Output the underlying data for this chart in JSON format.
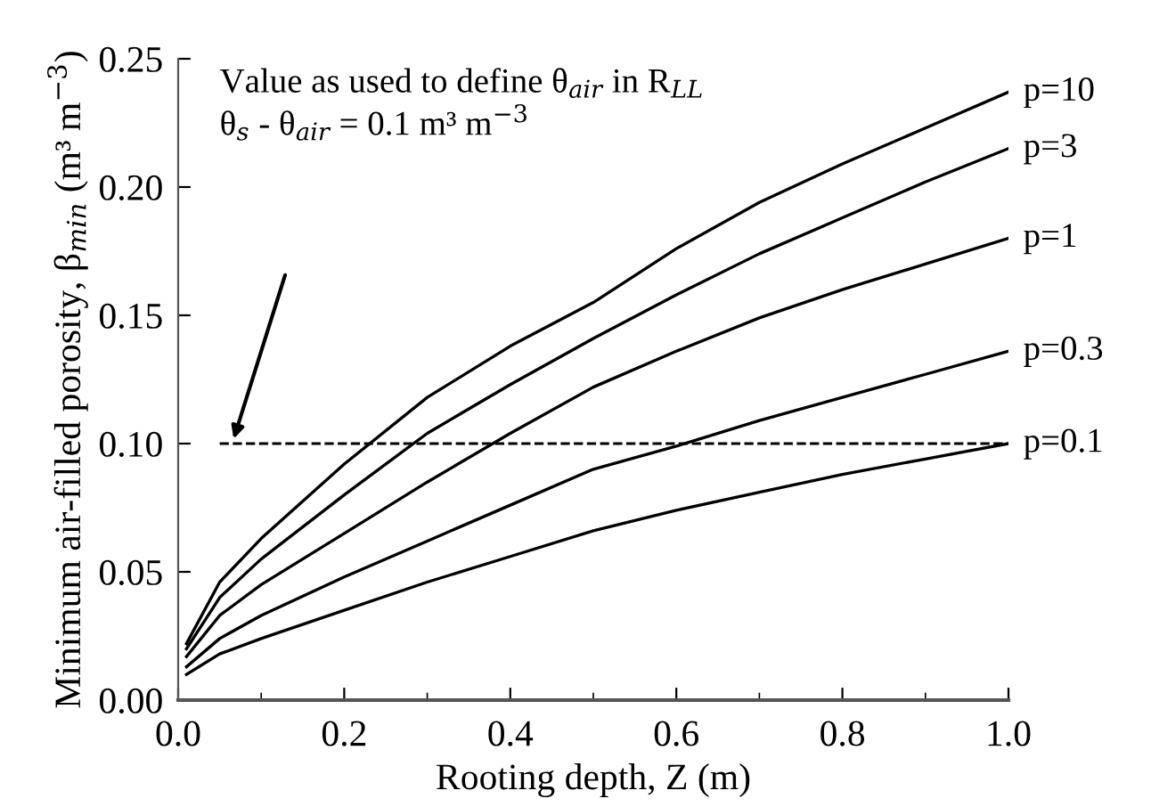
{
  "chart_data": {
    "type": "line",
    "xlabel": "Rooting depth, Z (m)",
    "ylabel": "Minimum air-filled porosity, β$_{min}$ (m³ m$^{−3}$)",
    "x": [
      0.01,
      0.05,
      0.1,
      0.2,
      0.3,
      0.4,
      0.5,
      0.6,
      0.7,
      0.8,
      0.9,
      1.0
    ],
    "series": [
      {
        "name": "p=10",
        "color": "#000000",
        "values": [
          0.022,
          0.046,
          0.063,
          0.092,
          0.118,
          0.138,
          0.155,
          0.176,
          0.194,
          0.209,
          0.223,
          0.237
        ]
      },
      {
        "name": "p=3",
        "color": "#000000",
        "values": [
          0.02,
          0.04,
          0.055,
          0.08,
          0.104,
          0.123,
          0.141,
          0.158,
          0.174,
          0.188,
          0.202,
          0.215
        ]
      },
      {
        "name": "p=1",
        "color": "#000000",
        "values": [
          0.017,
          0.033,
          0.045,
          0.065,
          0.085,
          0.104,
          0.122,
          0.136,
          0.149,
          0.16,
          0.17,
          0.18
        ]
      },
      {
        "name": "p=0.3",
        "color": "#000000",
        "values": [
          0.013,
          0.024,
          0.033,
          0.048,
          0.062,
          0.076,
          0.09,
          0.099,
          0.109,
          0.118,
          0.127,
          0.136
        ]
      },
      {
        "name": "p=0.1",
        "color": "#000000",
        "values": [
          0.01,
          0.018,
          0.024,
          0.035,
          0.046,
          0.056,
          0.066,
          0.074,
          0.081,
          0.088,
          0.094,
          0.1
        ]
      }
    ],
    "xlim": [
      0,
      1.0
    ],
    "xticks": [
      {
        "value": 0,
        "label": "0.0"
      },
      {
        "value": 0.2,
        "label": "0.2"
      },
      {
        "value": 0.4,
        "label": "0.4"
      },
      {
        "value": 0.6,
        "label": "0.6"
      },
      {
        "value": 0.8,
        "label": "0.8"
      },
      {
        "value": 1.0,
        "label": "1.0"
      }
    ],
    "ylim": [
      0,
      0.25
    ],
    "yticks": [
      {
        "value": 0,
        "label": "0.00"
      },
      {
        "value": 0.05,
        "label": "0.05"
      },
      {
        "value": 0.1,
        "label": "0.10"
      },
      {
        "value": 0.15,
        "label": "0.15"
      },
      {
        "value": 0.2,
        "label": "0.20"
      },
      {
        "value": 0.25,
        "label": "0.25"
      }
    ],
    "ref_lines": [
      {
        "axis": "y",
        "value": 0.1,
        "color": "#000000",
        "line_style": "dashed"
      }
    ],
    "annotations": [
      "Value as used to define θ$_{air}$ in R$_{LL}$\nθ$_{s}$ - θ$_{air}$ = 0.1 m³ m$^{−3}$"
    ],
    "grid": false,
    "legend": false,
    "marker": "none",
    "line_style": "solid"
  }
}
